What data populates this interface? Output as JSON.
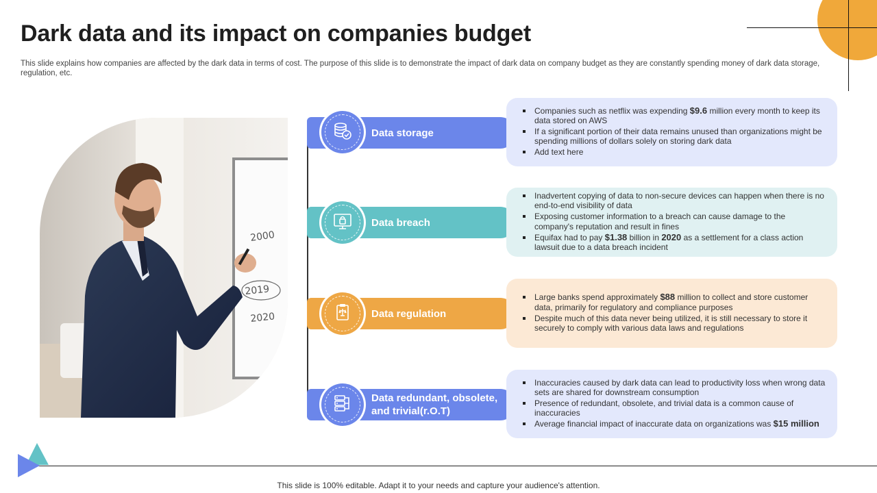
{
  "title": "Dark data and its impact on companies budget",
  "subtitle": "This slide explains how companies are affected by the dark data in terms of cost. The purpose of this slide is to demonstrate the impact of dark data on company budget as they are constantly spending money of dark data storage, regulation, etc.",
  "colors": {
    "blue": "#6b86ea",
    "teal": "#63c2c6",
    "orange": "#eea745",
    "box_blue": "#e3e8fc",
    "box_teal": "#e0f1f2",
    "box_orange": "#fce9d5",
    "accent_orange": "#f0a83a"
  },
  "rows": [
    {
      "label": "Data storage",
      "icon": "database-check-icon",
      "bullets": [
        [
          "Companies such as netflix was expending ",
          "$9.6",
          " million every month to keep its data stored on AWS"
        ],
        [
          "If a significant portion of their data remains unused than organizations might be spending millions of dollars solely on storing dark data"
        ],
        [
          "Add text here"
        ]
      ]
    },
    {
      "label": "Data breach",
      "icon": "lock-screen-icon",
      "bullets": [
        [
          "Inadvertent copying of data to non-secure devices can happen when there is no end-to-end visibility of data"
        ],
        [
          "Exposing customer information to a breach can cause damage to the company's reputation and result in fines"
        ],
        [
          "Equifax had to pay ",
          "$1.38",
          " billion in ",
          "2020",
          " as a settlement for a class action lawsuit due to a data breach incident"
        ]
      ]
    },
    {
      "label": "Data regulation",
      "icon": "regulation-clipboard-icon",
      "bullets": [
        [
          "Large banks spend approximately ",
          "$88",
          " million to collect and store customer data, primarily for regulatory and compliance purposes"
        ],
        [
          "Despite much of this data never being utilized, it is still necessary to store it securely to comply with various data laws and regulations"
        ]
      ]
    },
    {
      "label": "Data redundant, obsolete, and trivial(r.O.T)",
      "label_line1": "Data redundant, obsolete,",
      "label_line2": "and trivial(r.O.T)",
      "icon": "server-network-icon",
      "bullets": [
        [
          "Inaccuracies caused by dark data can lead to productivity loss when wrong data sets are shared for downstream consumption"
        ],
        [
          "Presence of redundant, obsolete, and trivial data is a common cause of inaccuracies"
        ],
        [
          "Average financial impact of inaccurate data on organizations was ",
          "$15 million"
        ]
      ]
    }
  ],
  "footer": "This slide is 100% editable. Adapt it to your needs and capture your audience's attention."
}
